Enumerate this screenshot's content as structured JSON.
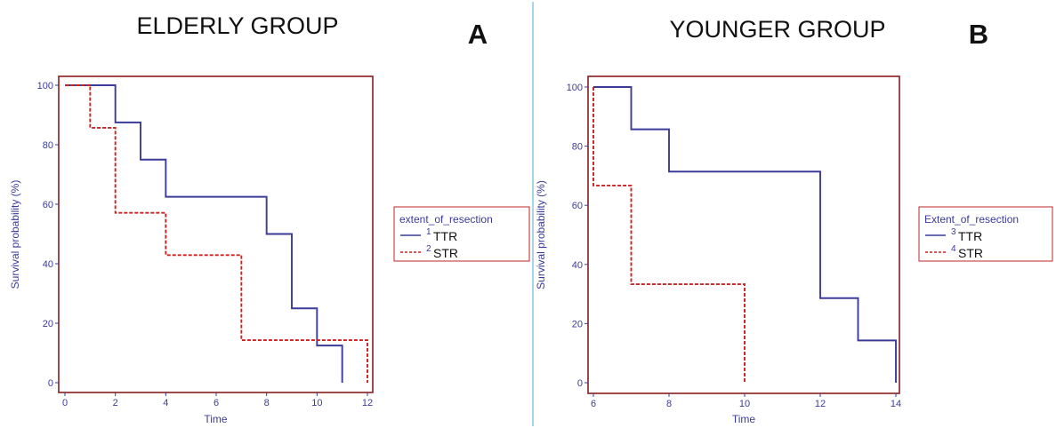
{
  "panels": [
    {
      "group_title": "ELDERLY GROUP",
      "letter": "A"
    },
    {
      "group_title": "YOUNGER GROUP",
      "letter": "B"
    }
  ],
  "chart_data": [
    {
      "type": "line",
      "subtype": "kaplan-meier step",
      "title": "ELDERLY GROUP",
      "panel_label": "A",
      "xlabel": "Time",
      "ylabel": "Survival probability (%)",
      "xlim": [
        0,
        12
      ],
      "ylim": [
        0,
        100
      ],
      "xticks": [
        "0",
        "2",
        "4",
        "6",
        "8",
        "10",
        "12"
      ],
      "yticks": [
        "0",
        "20",
        "40",
        "60",
        "80",
        "100"
      ],
      "grid": false,
      "legend": {
        "title": "extent_of_resection",
        "placement": "right"
      },
      "series": [
        {
          "name": "TTR",
          "code": "1",
          "color": "#3b3b9a",
          "style": "solid",
          "steps": [
            [
              0,
              100
            ],
            [
              2,
              87.5
            ],
            [
              3,
              75
            ],
            [
              4,
              62.5
            ],
            [
              8,
              50
            ],
            [
              9,
              25
            ],
            [
              10,
              12.5
            ],
            [
              11,
              0
            ]
          ]
        },
        {
          "name": "STR",
          "code": "2",
          "color": "#cc2222",
          "style": "dashed",
          "steps": [
            [
              0,
              100
            ],
            [
              1,
              85.7
            ],
            [
              2,
              57.1
            ],
            [
              4,
              42.9
            ],
            [
              7,
              14.3
            ],
            [
              12,
              0
            ]
          ]
        }
      ]
    },
    {
      "type": "line",
      "subtype": "kaplan-meier step",
      "title": "YOUNGER GROUP",
      "panel_label": "B",
      "xlabel": "Time",
      "ylabel": "Survival probability (%)",
      "xlim": [
        6,
        14
      ],
      "ylim": [
        0,
        100
      ],
      "xticks": [
        "6",
        "8",
        "10",
        "12",
        "14"
      ],
      "yticks": [
        "0",
        "20",
        "40",
        "60",
        "80",
        "100"
      ],
      "grid": false,
      "legend": {
        "title": "Extent_of_resection",
        "placement": "right"
      },
      "series": [
        {
          "name": "TTR",
          "code": "3",
          "color": "#3b3b9a",
          "style": "solid",
          "steps": [
            [
              6,
              100
            ],
            [
              7,
              85.7
            ],
            [
              8,
              71.4
            ],
            [
              12,
              28.6
            ],
            [
              13,
              14.3
            ],
            [
              14,
              0
            ]
          ]
        },
        {
          "name": "STR",
          "code": "4",
          "color": "#cc2222",
          "style": "dashed",
          "steps": [
            [
              6,
              100
            ],
            [
              6,
              66.7
            ],
            [
              7,
              33.3
            ],
            [
              10,
              0
            ]
          ]
        }
      ]
    }
  ]
}
